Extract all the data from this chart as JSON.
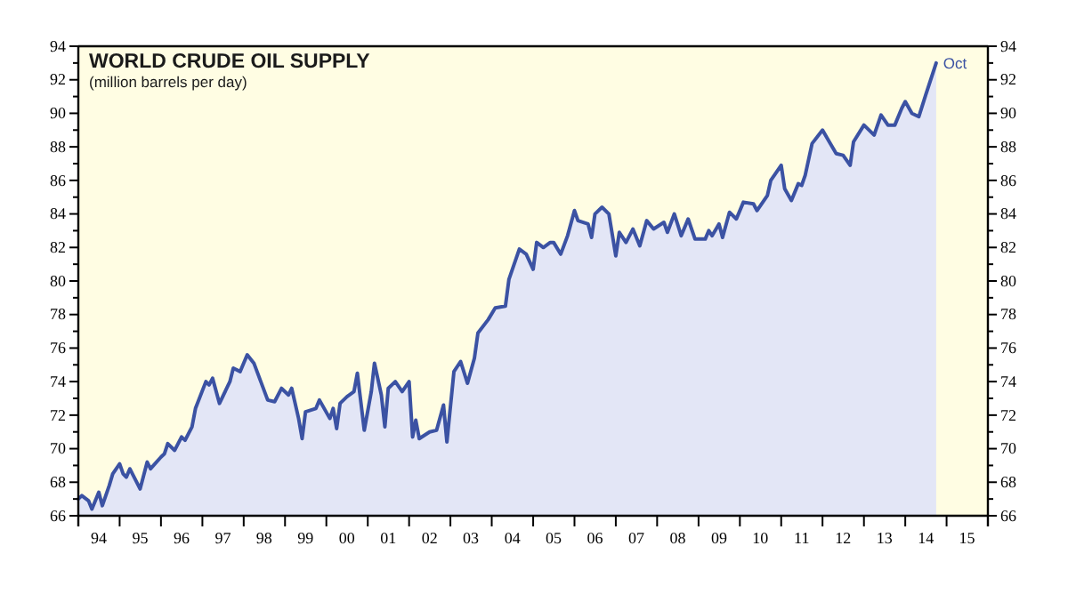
{
  "chart_data": {
    "type": "area",
    "title": "WORLD CRUDE OIL SUPPLY",
    "subtitle": "(million barrels per day)",
    "color": "#3b52a3",
    "x": [
      "1994-01",
      "1994-02",
      "1994-04",
      "1994-05",
      "1994-07",
      "1994-08",
      "1994-10",
      "1994-11",
      "1995-01",
      "1995-02",
      "1995-03",
      "1995-04",
      "1995-07",
      "1995-09",
      "1995-10",
      "1996-01",
      "1996-02",
      "1996-03",
      "1996-05",
      "1996-07",
      "1996-08",
      "1996-10",
      "1996-11",
      "1997-02",
      "1997-03",
      "1997-04",
      "1997-06",
      "1997-09",
      "1997-10",
      "1997-12",
      "1998-02",
      "1998-04",
      "1998-06",
      "1998-08",
      "1998-10",
      "1998-12",
      "1999-02",
      "1999-03",
      "1999-05",
      "1999-06",
      "1999-07",
      "1999-10",
      "1999-11",
      "2000-02",
      "2000-03",
      "2000-04",
      "2000-05",
      "2000-07",
      "2000-09",
      "2000-10",
      "2000-12",
      "2001-02",
      "2001-03",
      "2001-05",
      "2001-06",
      "2001-07",
      "2001-09",
      "2001-11",
      "2002-01",
      "2002-02",
      "2002-03",
      "2002-04",
      "2002-07",
      "2002-09",
      "2002-11",
      "2002-12",
      "2003-02",
      "2003-04",
      "2003-06",
      "2003-08",
      "2003-09",
      "2003-12",
      "2004-02",
      "2004-05",
      "2004-06",
      "2004-09",
      "2004-11",
      "2005-01",
      "2005-02",
      "2005-04",
      "2005-06",
      "2005-07",
      "2005-09",
      "2005-11",
      "2006-01",
      "2006-02",
      "2006-05",
      "2006-06",
      "2006-07",
      "2006-09",
      "2006-11",
      "2007-01",
      "2007-02",
      "2007-04",
      "2007-06",
      "2007-08",
      "2007-10",
      "2007-12",
      "2008-03",
      "2008-04",
      "2008-06",
      "2008-08",
      "2008-10",
      "2008-12",
      "2009-03",
      "2009-04",
      "2009-05",
      "2009-07",
      "2009-08",
      "2009-10",
      "2009-12",
      "2010-02",
      "2010-05",
      "2010-06",
      "2010-09",
      "2010-10",
      "2011-01",
      "2011-02",
      "2011-04",
      "2011-06",
      "2011-07",
      "2011-08",
      "2011-10",
      "2012-01",
      "2012-03",
      "2012-05",
      "2012-07",
      "2012-09",
      "2012-10",
      "2013-01",
      "2013-04",
      "2013-06",
      "2013-08",
      "2013-10",
      "2013-12",
      "2014-01",
      "2014-03",
      "2014-05",
      "2014-07",
      "2014-10"
    ],
    "values": [
      67.0,
      67.2,
      66.9,
      66.4,
      67.4,
      66.6,
      67.8,
      68.5,
      69.1,
      68.5,
      68.3,
      68.8,
      67.6,
      69.2,
      68.8,
      69.5,
      69.7,
      70.3,
      69.9,
      70.7,
      70.5,
      71.3,
      72.4,
      74.0,
      73.8,
      74.2,
      72.7,
      74.0,
      74.8,
      74.6,
      75.6,
      75.1,
      74.0,
      72.9,
      72.8,
      73.6,
      73.2,
      73.6,
      71.8,
      70.6,
      72.2,
      72.4,
      72.9,
      71.8,
      72.4,
      71.2,
      72.7,
      73.1,
      73.4,
      74.5,
      71.1,
      73.4,
      75.1,
      73.2,
      71.3,
      73.6,
      74.0,
      73.4,
      74.0,
      70.7,
      71.7,
      70.6,
      71.0,
      71.1,
      72.6,
      70.4,
      74.6,
      75.2,
      73.9,
      75.4,
      76.9,
      77.7,
      78.4,
      78.5,
      80.1,
      81.9,
      81.6,
      80.7,
      82.3,
      82.0,
      82.3,
      82.3,
      81.6,
      82.7,
      84.2,
      83.6,
      83.4,
      82.6,
      84.0,
      84.4,
      84.0,
      81.5,
      82.9,
      82.3,
      83.1,
      82.1,
      83.6,
      83.1,
      83.5,
      82.9,
      84.0,
      82.7,
      83.7,
      82.5,
      82.5,
      83.0,
      82.7,
      83.4,
      82.6,
      84.1,
      83.7,
      84.7,
      84.6,
      84.2,
      85.1,
      86.0,
      86.9,
      85.5,
      84.8,
      85.8,
      85.7,
      86.3,
      88.2,
      89.0,
      88.3,
      87.6,
      87.5,
      86.9,
      88.3,
      89.3,
      88.7,
      89.9,
      89.3,
      89.3,
      90.3,
      90.7,
      90.0,
      89.8,
      91.1,
      93.0
    ],
    "xlim": [
      "1994-01",
      "2016-01"
    ],
    "xticks": [
      {
        "value": "1994-01",
        "label": null
      },
      {
        "value": "1994-07",
        "label": "94"
      },
      {
        "value": "1995-01",
        "label": null
      },
      {
        "value": "1995-07",
        "label": "95"
      },
      {
        "value": "1996-01",
        "label": null
      },
      {
        "value": "1996-07",
        "label": "96"
      },
      {
        "value": "1997-01",
        "label": null
      },
      {
        "value": "1997-07",
        "label": "97"
      },
      {
        "value": "1998-01",
        "label": null
      },
      {
        "value": "1998-07",
        "label": "98"
      },
      {
        "value": "1999-01",
        "label": null
      },
      {
        "value": "1999-07",
        "label": "99"
      },
      {
        "value": "2000-01",
        "label": null
      },
      {
        "value": "2000-07",
        "label": "00"
      },
      {
        "value": "2001-01",
        "label": null
      },
      {
        "value": "2001-07",
        "label": "01"
      },
      {
        "value": "2002-01",
        "label": null
      },
      {
        "value": "2002-07",
        "label": "02"
      },
      {
        "value": "2003-01",
        "label": null
      },
      {
        "value": "2003-07",
        "label": "03"
      },
      {
        "value": "2004-01",
        "label": null
      },
      {
        "value": "2004-07",
        "label": "04"
      },
      {
        "value": "2005-01",
        "label": null
      },
      {
        "value": "2005-07",
        "label": "05"
      },
      {
        "value": "2006-01",
        "label": null
      },
      {
        "value": "2006-07",
        "label": "06"
      },
      {
        "value": "2007-01",
        "label": null
      },
      {
        "value": "2007-07",
        "label": "07"
      },
      {
        "value": "2008-01",
        "label": null
      },
      {
        "value": "2008-07",
        "label": "08"
      },
      {
        "value": "2009-01",
        "label": null
      },
      {
        "value": "2009-07",
        "label": "09"
      },
      {
        "value": "2010-01",
        "label": null
      },
      {
        "value": "2010-07",
        "label": "10"
      },
      {
        "value": "2011-01",
        "label": null
      },
      {
        "value": "2011-07",
        "label": "11"
      },
      {
        "value": "2012-01",
        "label": null
      },
      {
        "value": "2012-07",
        "label": "12"
      },
      {
        "value": "2013-01",
        "label": null
      },
      {
        "value": "2013-07",
        "label": "13"
      },
      {
        "value": "2014-01",
        "label": null
      },
      {
        "value": "2014-07",
        "label": "14"
      },
      {
        "value": "2015-01",
        "label": null
      },
      {
        "value": "2015-07",
        "label": "15"
      },
      {
        "value": "2016-01",
        "label": null
      }
    ],
    "ylim": [
      66,
      94
    ],
    "yticks": [
      66,
      {
        "value": 67,
        "label": null
      },
      68,
      {
        "value": 69,
        "label": null
      },
      70,
      {
        "value": 71,
        "label": null
      },
      72,
      {
        "value": 73,
        "label": null
      },
      74,
      {
        "value": 75,
        "label": null
      },
      76,
      {
        "value": 77,
        "label": null
      },
      78,
      {
        "value": 79,
        "label": null
      },
      80,
      {
        "value": 81,
        "label": null
      },
      82,
      {
        "value": 83,
        "label": null
      },
      84,
      {
        "value": 85,
        "label": null
      },
      86,
      {
        "value": 87,
        "label": null
      },
      88,
      {
        "value": 89,
        "label": null
      },
      90,
      {
        "value": 91,
        "label": null
      },
      92,
      {
        "value": 93,
        "label": null
      },
      94
    ],
    "y2lim": [
      66,
      94
    ],
    "y2ticks": [
      66,
      {
        "value": 67,
        "label": null
      },
      68,
      {
        "value": 69,
        "label": null
      },
      70,
      {
        "value": 71,
        "label": null
      },
      72,
      {
        "value": 73,
        "label": null
      },
      74,
      {
        "value": 75,
        "label": null
      },
      76,
      {
        "value": 77,
        "label": null
      },
      78,
      {
        "value": 79,
        "label": null
      },
      80,
      {
        "value": 81,
        "label": null
      },
      82,
      {
        "value": 83,
        "label": null
      },
      84,
      {
        "value": 85,
        "label": null
      },
      86,
      {
        "value": 87,
        "label": null
      },
      88,
      {
        "value": 89,
        "label": null
      },
      90,
      {
        "value": 91,
        "label": null
      },
      92,
      {
        "value": 93,
        "label": null
      },
      94
    ],
    "annotations": [
      {
        "text": "Oct",
        "x": "2014-10",
        "y": 93.0
      }
    ]
  }
}
